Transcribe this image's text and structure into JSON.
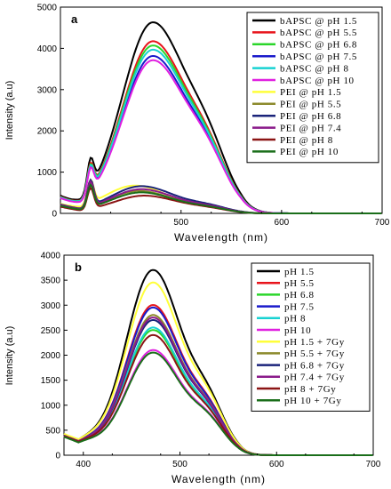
{
  "colors": {
    "black": "#000000",
    "red": "#e8141b",
    "green": "#2ad62a",
    "blue": "#1a1acb",
    "cyan": "#18d2d2",
    "magenta": "#e020e0",
    "yellow": "#ffff3a",
    "olive": "#8c8a2c",
    "navy": "#1a237a",
    "purple": "#8a1a8a",
    "darkred": "#8b1414",
    "darkgreen": "#1a6e1a"
  },
  "chart_data": [
    {
      "type": "line",
      "panel_letter": "a",
      "xlabel": "Wavelength (nm)",
      "ylabel": "Intensity (a.u)",
      "xlim": [
        380,
        700
      ],
      "ylim": [
        0,
        5000
      ],
      "xticks": [
        "500",
        "600",
        "700"
      ],
      "yticks": [
        "0",
        "1000",
        "2000",
        "3000",
        "4000",
        "5000"
      ],
      "legend_position": "top-right",
      "series": [
        {
          "name": "bAPSC @ pH 1.5",
          "color": "black",
          "peak": 4500,
          "peak_x": 472,
          "shoulder": 1950,
          "start": 380,
          "bump": 700
        },
        {
          "name": "bAPSC @ pH 5.5",
          "color": "red",
          "peak": 4050,
          "peak_x": 472,
          "shoulder": 1720,
          "start": 360,
          "bump": 640
        },
        {
          "name": "bAPSC @ pH 6.8",
          "color": "green",
          "peak": 3950,
          "peak_x": 472,
          "shoulder": 1680,
          "start": 350,
          "bump": 620
        },
        {
          "name": "bAPSC @ pH 7.5",
          "color": "blue",
          "peak": 3700,
          "peak_x": 472,
          "shoulder": 1600,
          "start": 340,
          "bump": 600
        },
        {
          "name": "bAPSC @ pH 8",
          "color": "cyan",
          "peak": 3850,
          "peak_x": 472,
          "shoulder": 1640,
          "start": 345,
          "bump": 610
        },
        {
          "name": "bAPSC @ pH 10",
          "color": "magenta",
          "peak": 3600,
          "peak_x": 472,
          "shoulder": 1560,
          "start": 330,
          "bump": 590
        },
        {
          "name": "PEI @ pH 1.5",
          "color": "yellow",
          "peak": 600,
          "peak_x": 455,
          "shoulder": 230,
          "start": 200,
          "bump": 560
        },
        {
          "name": "PEI @ pH 5.5",
          "color": "olive",
          "peak": 480,
          "peak_x": 460,
          "shoulder": 190,
          "start": 180,
          "bump": 540
        },
        {
          "name": "PEI @ pH 6.8",
          "color": "navy",
          "peak": 590,
          "peak_x": 462,
          "shoulder": 240,
          "start": 200,
          "bump": 620
        },
        {
          "name": "PEI @ pH 7.4",
          "color": "purple",
          "peak": 520,
          "peak_x": 462,
          "shoulder": 210,
          "start": 190,
          "bump": 600
        },
        {
          "name": "PEI @ pH 8",
          "color": "darkred",
          "peak": 380,
          "peak_x": 465,
          "shoulder": 150,
          "start": 150,
          "bump": 500
        },
        {
          "name": "PEI @ pH 10",
          "color": "darkgreen",
          "peak": 450,
          "peak_x": 462,
          "shoulder": 180,
          "start": 170,
          "bump": 540
        }
      ]
    },
    {
      "type": "line",
      "panel_letter": "b",
      "xlabel": "Wavelength (nm)",
      "ylabel": "Intensity (a.u)",
      "xlim": [
        380,
        700
      ],
      "ylim": [
        0,
        4000
      ],
      "xticks": [
        "400",
        "500",
        "600",
        "700"
      ],
      "yticks": [
        "0",
        "500",
        "1000",
        "1500",
        "2000",
        "2500",
        "3000",
        "3500",
        "4000"
      ],
      "legend_position": "top-right",
      "series": [
        {
          "name": "pH 1.5",
          "color": "black",
          "peak": 3700,
          "peak_x": 472,
          "shoulder": 1350,
          "start": 300
        },
        {
          "name": "pH 5.5",
          "color": "red",
          "peak": 3000,
          "peak_x": 472,
          "shoulder": 1150,
          "start": 290
        },
        {
          "name": "pH 6.8",
          "color": "green",
          "peak": 2500,
          "peak_x": 472,
          "shoulder": 1000,
          "start": 280
        },
        {
          "name": "pH 7.5",
          "color": "blue",
          "peak": 2950,
          "peak_x": 472,
          "shoulder": 1130,
          "start": 290
        },
        {
          "name": "pH 8",
          "color": "cyan",
          "peak": 2550,
          "peak_x": 472,
          "shoulder": 1000,
          "start": 285
        },
        {
          "name": "pH 10",
          "color": "magenta",
          "peak": 2100,
          "peak_x": 472,
          "shoulder": 880,
          "start": 275
        },
        {
          "name": "pH 1.5 + 7Gy",
          "color": "yellow",
          "peak": 3450,
          "peak_x": 472,
          "shoulder": 1300,
          "start": 310
        },
        {
          "name": "pH 5.5 + 7Gy",
          "color": "olive",
          "peak": 2800,
          "peak_x": 472,
          "shoulder": 1080,
          "start": 285
        },
        {
          "name": "pH 6.8 + 7Gy",
          "color": "navy",
          "peak": 2700,
          "peak_x": 472,
          "shoulder": 1060,
          "start": 285
        },
        {
          "name": "pH 7.4 + 7Gy",
          "color": "purple",
          "peak": 2750,
          "peak_x": 472,
          "shoulder": 1070,
          "start": 285
        },
        {
          "name": "pH 8 + 7Gy",
          "color": "darkred",
          "peak": 2400,
          "peak_x": 472,
          "shoulder": 960,
          "start": 280
        },
        {
          "name": "pH 10 + 7Gy",
          "color": "darkgreen",
          "peak": 2050,
          "peak_x": 472,
          "shoulder": 860,
          "start": 270
        }
      ]
    }
  ]
}
